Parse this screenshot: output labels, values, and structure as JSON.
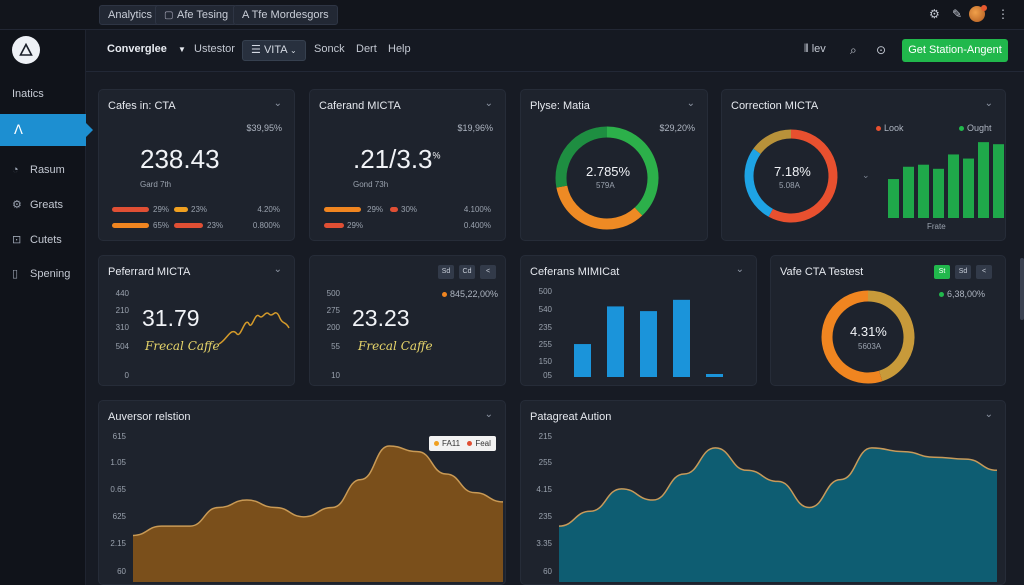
{
  "topbar": {
    "chips": [
      "Analytics",
      "Afe Tesing",
      "A Tfe Mordesgors"
    ]
  },
  "sidebar": {
    "section_title": "Inatics",
    "active_icon": "ꓥ",
    "items": [
      {
        "label": "Rasum",
        "icon": "chart-icon"
      },
      {
        "label": "Greats",
        "icon": "gear-icon"
      },
      {
        "label": "Cutets",
        "icon": "lock-icon"
      },
      {
        "label": "Spening",
        "icon": "phone-icon"
      }
    ]
  },
  "menubar": {
    "brand": "Converglee",
    "items": [
      "Ustestor",
      "Sonck",
      "Dert",
      "Help"
    ],
    "select_value": "VITA",
    "right_label": "lev",
    "cta": "Get Station-Angent"
  },
  "cards": {
    "c1": {
      "title": "Cafes in: CTA",
      "corner": "$39,95%",
      "value": "238.43",
      "sub": "Gard 7th",
      "rows": [
        [
          "29%",
          "23%",
          "4.20%"
        ],
        [
          "65%",
          "23%",
          "0.800%"
        ]
      ]
    },
    "c2": {
      "title": "Caferand MICTA",
      "corner": "$19,96%",
      "value": ".21/3.3",
      "value_sup": "%",
      "sub": "Gond 73h",
      "rows": [
        [
          "29%",
          "30%",
          "4.100%"
        ],
        [
          "29%",
          "",
          "0.400%"
        ]
      ]
    },
    "c3": {
      "title": "Plyse: Matia",
      "corner": "$29,20%",
      "center": "2.785%",
      "center_sub": "579A"
    },
    "c4": {
      "title": "Correction MICTA",
      "legend": [
        "Look",
        "Ought"
      ],
      "center": "7.18%",
      "center_sub": "5.08A",
      "xlabel": "Frate"
    },
    "c5": {
      "title": "Peferrard MICTA",
      "value": "31.79",
      "script": "Frecal Caffe",
      "ticks": [
        "440",
        "210",
        "310",
        "504",
        "0"
      ]
    },
    "c6": {
      "title": "",
      "corner": "845,22,00%",
      "value": "23.23",
      "script": "Frecal Caffe",
      "ticks": [
        "500",
        "275",
        "200",
        "55",
        "10"
      ],
      "icons": [
        "Sd",
        "Cd",
        "<"
      ]
    },
    "c7": {
      "title": "Ceferans MIMICat",
      "ticks": [
        "500",
        "540",
        "235",
        "255",
        "150",
        "05"
      ]
    },
    "c8": {
      "title": "Vafe CTA Testest",
      "corner": "6,38,00%",
      "center": "4.31%",
      "center_sub": "5603A",
      "icons": [
        "St",
        "Sd",
        "<"
      ]
    },
    "c9": {
      "title": "Auversor relstion",
      "ticks": [
        "615",
        "1.05",
        "0.65",
        "625",
        "2.15",
        "60"
      ],
      "legend": [
        "FA11",
        "Feal"
      ]
    },
    "c10": {
      "title": "Patagreat Aution",
      "ticks": [
        "215",
        "255",
        "4.15",
        "235",
        "3.35",
        "60"
      ]
    }
  },
  "chart_data": [
    {
      "type": "pie",
      "title": "Correction MICTA",
      "values": [
        58,
        27,
        15
      ],
      "colors": [
        "#e8502f",
        "#1ea3e4",
        "#b8923a"
      ]
    },
    {
      "type": "bar",
      "title": "Correction MICTA",
      "xlabel": "Frate",
      "values": [
        38,
        50,
        52,
        48,
        62,
        58,
        74,
        72
      ],
      "color": "#1fa84a"
    },
    {
      "type": "bar",
      "title": "Ceferans MIMICat",
      "values": [
        35,
        75,
        70,
        82,
        3
      ],
      "color": "#1b94da"
    },
    {
      "type": "pie",
      "title": "Plyse: Matia",
      "values": [
        38,
        34,
        28
      ],
      "colors": [
        "#2cb04a",
        "#ee8a24",
        "#1e8e41"
      ]
    },
    {
      "type": "pie",
      "title": "Vafe CTA Testest",
      "values": [
        45,
        55
      ],
      "colors": [
        "#c89a3a",
        "#f08520"
      ]
    },
    {
      "type": "area",
      "title": "Auversor relstion",
      "values": [
        25,
        30,
        30,
        40,
        44,
        40,
        35,
        40,
        55,
        73,
        70,
        58,
        48,
        43
      ],
      "color": "#7a4f1b"
    },
    {
      "type": "area",
      "title": "Patagreat Aution",
      "values": [
        30,
        38,
        50,
        44,
        58,
        72,
        60,
        54,
        40,
        55,
        72,
        70,
        67,
        66,
        60
      ],
      "color": "#0e5d72"
    }
  ],
  "colors": {
    "accent": "#1d8fd1",
    "cta": "#21b84c"
  }
}
